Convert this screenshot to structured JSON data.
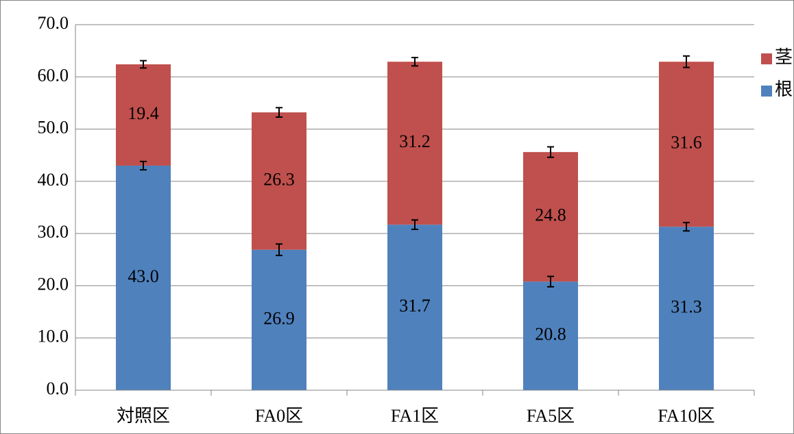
{
  "chart_data": {
    "type": "stacked-bar",
    "categories": [
      "対照区",
      "FA0区",
      "FA1区",
      "FA5区",
      "FA10区"
    ],
    "series": [
      {
        "name": "根",
        "color": "#4f81bd",
        "values": [
          43.0,
          26.9,
          31.7,
          20.8,
          31.3
        ],
        "value_labels": [
          "43.0",
          "26.9",
          "31.7",
          "20.8",
          "31.3"
        ],
        "errors": [
          0.8,
          1.1,
          0.9,
          1.0,
          0.8
        ]
      },
      {
        "name": "茎",
        "color": "#c0504d",
        "values": [
          19.4,
          26.3,
          31.2,
          24.8,
          31.6
        ],
        "value_labels": [
          "19.4",
          "26.3",
          "31.2",
          "24.8",
          "31.6"
        ],
        "errors": [
          0.7,
          0.9,
          0.8,
          1.0,
          1.1
        ]
      }
    ],
    "ylim": [
      0,
      70
    ],
    "yticks": [
      {
        "value": 0,
        "label": "0.0"
      },
      {
        "value": 10,
        "label": "10.0"
      },
      {
        "value": 20,
        "label": "20.0"
      },
      {
        "value": 30,
        "label": "30.0"
      },
      {
        "value": 40,
        "label": "40.0"
      },
      {
        "value": 50,
        "label": "50.0"
      },
      {
        "value": 60,
        "label": "60.0"
      },
      {
        "value": 70,
        "label": "70.0"
      }
    ],
    "grid": true,
    "legend": "right"
  }
}
